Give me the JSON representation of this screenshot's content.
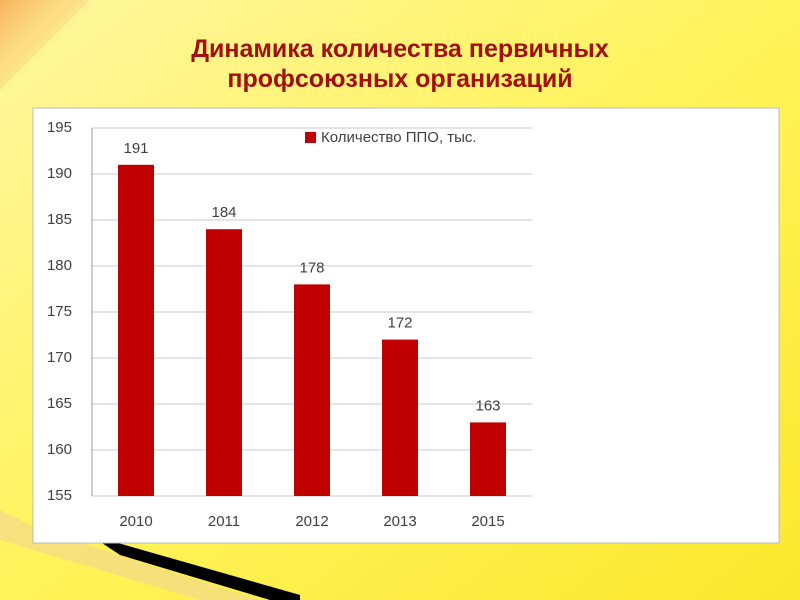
{
  "chart_data": {
    "type": "bar",
    "title": "Динамика количества первичных профсоюзных организаций",
    "categories": [
      "2010",
      "2011",
      "2012",
      "2013",
      "2015"
    ],
    "series": [
      {
        "name": "Количество ППО, тыс.",
        "color": "#c00000",
        "values": [
          191,
          184,
          178,
          172,
          163
        ]
      }
    ],
    "ylim": [
      155,
      195
    ],
    "yticks": [
      155,
      160,
      165,
      170,
      175,
      180,
      185,
      190,
      195
    ],
    "grid": true,
    "legend": "top"
  }
}
